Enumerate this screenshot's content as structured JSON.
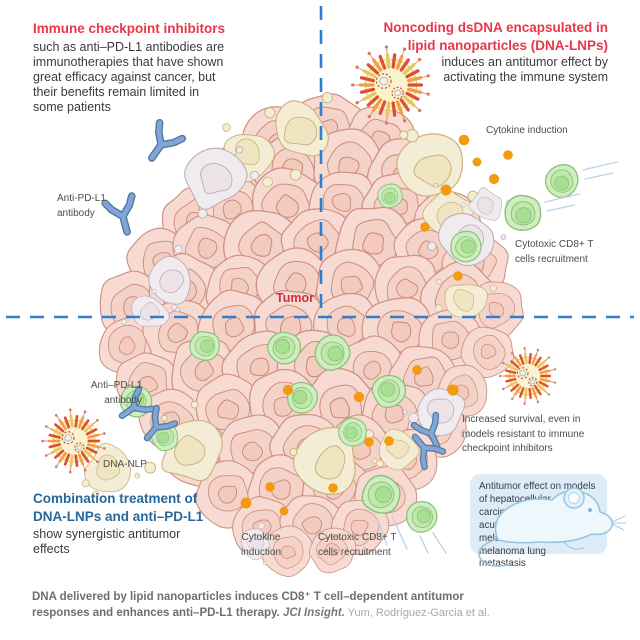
{
  "panels": {
    "top_left": {
      "heading": "Immune checkpoint inhibitors",
      "body": "such as anti–PD-L1 antibodies are\nimmunotherapies that have shown\ngreat efficacy against cancer, but\ntheir benefits remain limited in\nsome patients"
    },
    "top_right": {
      "heading": "Noncoding dsDNA encapsulated in\nlipid nanoparticles (DNA-LNPs)",
      "body": "induces an antitumor effect by\nactivating the immune system"
    },
    "bottom_left": {
      "heading": "Combination treatment of\nDNA-LNPs and anti–PD-L1",
      "body": "show synergistic antitumor\neffects"
    }
  },
  "labels": {
    "anti_pdl1_top": "Anti-PD-L1\nantibody",
    "cytokine_top": "Cytokine induction",
    "cd8_top": "Cytotoxic CD8+ T\ncells recruitment",
    "tumor": "Tumor",
    "anti_pdl1_bottom": "Anti–PD-L1\nantibody",
    "dna_nlp": "DNA-NLP",
    "cytokine_bottom": "Cytokine\ninduction",
    "cd8_bottom": "Cytotoxic CD8+ T\ncells recruitment",
    "increased_survival": "Increased survival, even in\nmodels resistant to immune\ncheckpoint inhibitors",
    "antitumor_box": "Antitumor effect on models\nof hepatocellular carcinoma,\nacute myeloid leukemia,\nmelanoma, and\nmelanoma lung\nmetastasis"
  },
  "caption": {
    "bold": "DNA delivered by lipid nanoparticles induces CD8⁺ T cell–dependent antitumor\nresponses and enhances anti–PD-L1 therapy.",
    "journal": " JCI Insight.",
    "authors": " Yum, Rodríguez-Garcia et al."
  },
  "icons": {
    "lnp": "lipid-nanoparticle-icon",
    "antibody": "antibody-y-icon",
    "t_cell": "cd8-t-cell-icon",
    "cytokine": "cytokine-dot-icon",
    "mouse": "mouse-icon",
    "tumor": "tumor-cell-cluster-illustration"
  },
  "colors": {
    "heading_red": "#e8374a",
    "heading_blue": "#27679a",
    "tumor_label_red": "#d8293f",
    "dashed_line_blue": "#2f7ed0",
    "cytokine_orange": "#f49a10",
    "antibody_blue": "#7fa6d7",
    "t_cell_green": "#cfeec0",
    "tumor_pink": "#f7dbd2",
    "box_bg": "#dcecf9",
    "caption_gray": "#6d6e71",
    "caption_light_gray": "#a6a8ab"
  }
}
